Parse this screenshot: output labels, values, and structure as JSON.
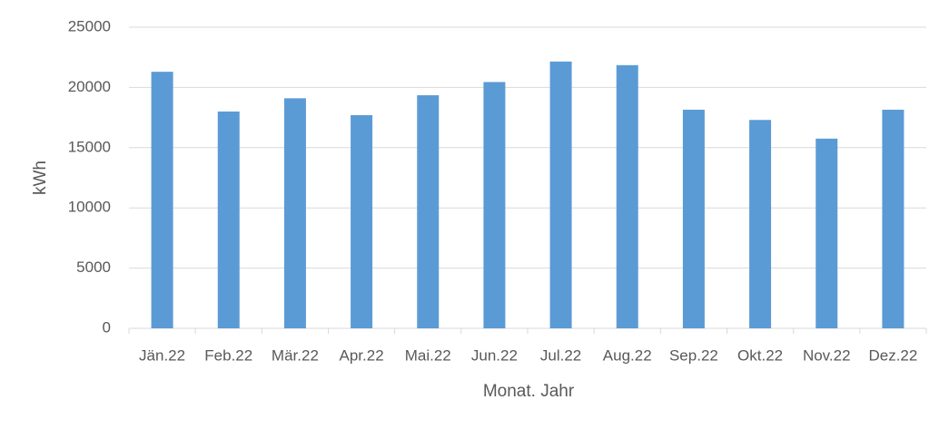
{
  "chart_data": {
    "type": "bar",
    "x_label": "Monat. Jahr",
    "y_label": "kWh",
    "categories": [
      "Jän.22",
      "Feb.22",
      "Mär.22",
      "Apr.22",
      "Mai.22",
      "Jun.22",
      "Jul.22",
      "Aug.22",
      "Sep.22",
      "Okt.22",
      "Nov.22",
      "Dez.22"
    ],
    "values": [
      21300,
      18000,
      19100,
      17700,
      19350,
      20450,
      22150,
      21850,
      18150,
      17300,
      15750,
      18150
    ],
    "color": "#5b9bd5",
    "ylim": [
      0,
      25000
    ],
    "yticks": [
      0,
      5000,
      10000,
      15000,
      20000,
      25000
    ],
    "grid": true
  }
}
